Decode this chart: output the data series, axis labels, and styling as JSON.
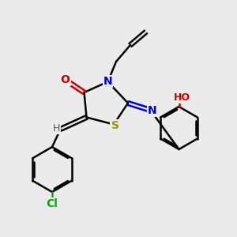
{
  "bg_color": "#ebebeb",
  "bond_color": "#000000",
  "bond_width": 1.8,
  "dbo": 0.12,
  "xlim": [
    0,
    10
  ],
  "ylim": [
    0,
    10
  ],
  "O_color": "#cc0000",
  "N_color": "#0000cc",
  "S_color": "#999900",
  "Cl_color": "#00aa00",
  "H_color": "#555555"
}
